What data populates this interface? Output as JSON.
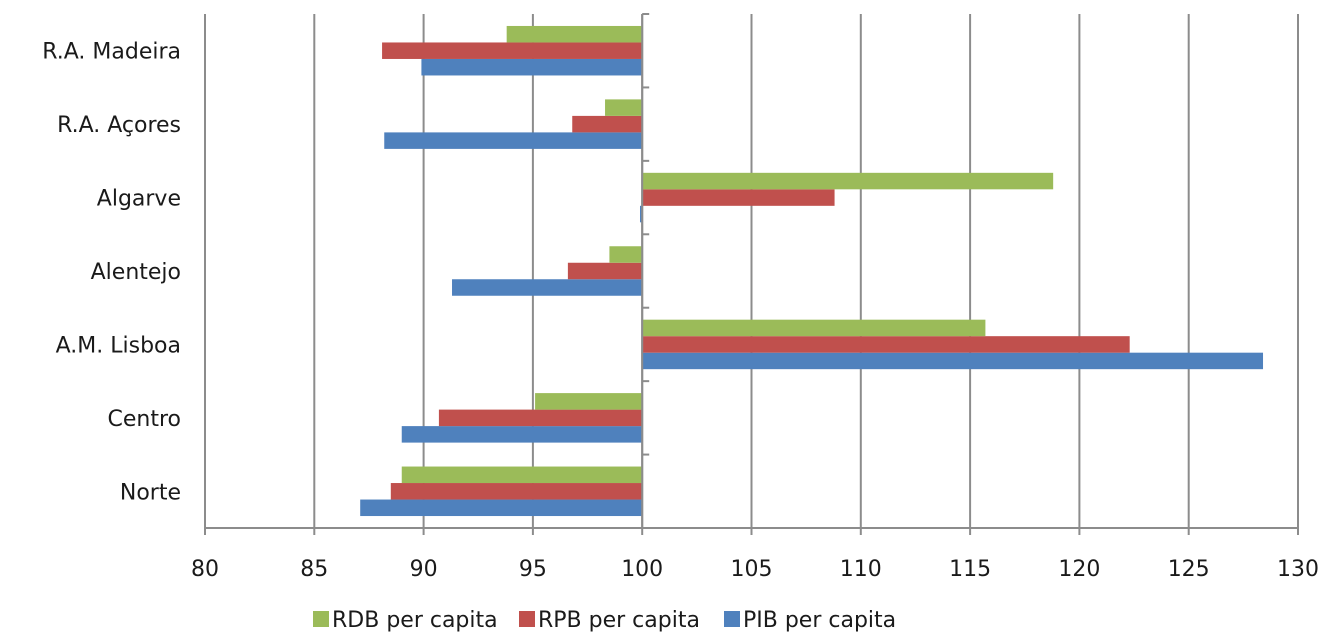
{
  "chart_data": {
    "type": "bar",
    "orientation": "horizontal",
    "baseline": 100,
    "categories": [
      "Norte",
      "Centro",
      "A.M. Lisboa",
      "Alentejo",
      "Algarve",
      "R.A. Açores",
      "R.A. Madeira"
    ],
    "series": [
      {
        "name": "PIB per capita",
        "color": "#4f81bd",
        "values": [
          87.1,
          89.0,
          128.4,
          91.3,
          99.9,
          88.2,
          89.9
        ]
      },
      {
        "name": "RPB per capita",
        "color": "#c0504d",
        "values": [
          88.5,
          90.7,
          122.3,
          96.6,
          108.8,
          96.8,
          88.1
        ]
      },
      {
        "name": "RDB per capita",
        "color": "#9bbb59",
        "values": [
          89.0,
          95.1,
          115.7,
          98.5,
          118.8,
          98.3,
          93.8
        ]
      }
    ],
    "legend_order": [
      "RDB per capita",
      "RPB per capita",
      "PIB per capita"
    ],
    "xlim": [
      80,
      130
    ],
    "xticks": [
      80,
      85,
      90,
      95,
      100,
      105,
      110,
      115,
      120,
      125,
      130
    ],
    "grid": "vertical",
    "legend_position": "bottom",
    "title": "",
    "xlabel": "",
    "ylabel": ""
  }
}
